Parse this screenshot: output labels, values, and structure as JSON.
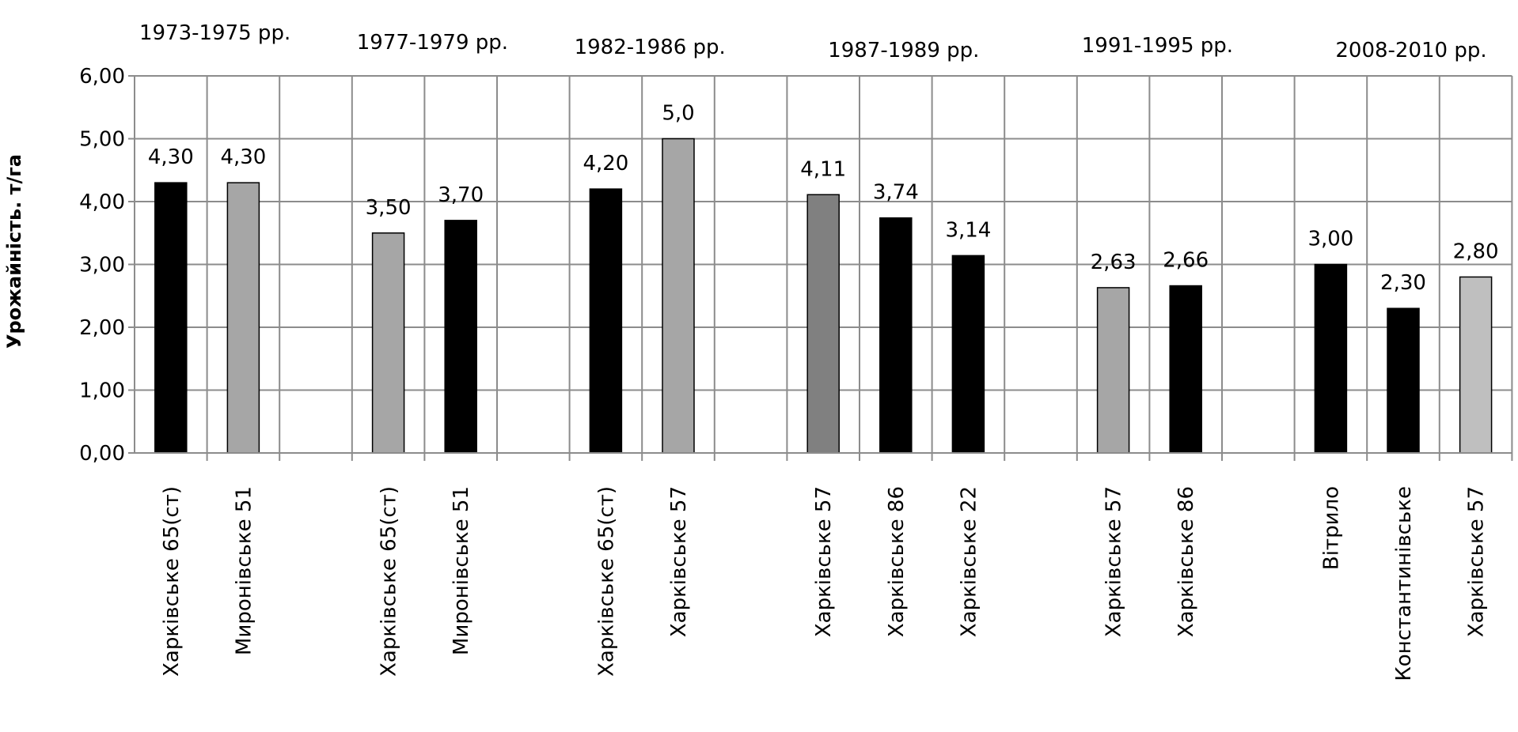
{
  "chart_data": {
    "type": "bar",
    "ylabel": "Урожайність. т/га",
    "xlabel": "",
    "ylim": [
      0,
      6
    ],
    "y_ticks": [
      "0,00",
      "1,00",
      "2,00",
      "3,00",
      "4,00",
      "5,00",
      "6,00"
    ],
    "grid": true,
    "colors": {
      "black": "#000000",
      "gray": "#a6a6a6",
      "darkgray": "#808080",
      "lightgray": "#bfbfbf"
    },
    "groups": [
      {
        "period": "1973-1975 рр.",
        "bars": [
          {
            "label": "Харківське 65(ст)",
            "value": 4.3,
            "value_label": "4,30",
            "color": "black"
          },
          {
            "label": "Миронівське 51",
            "value": 4.3,
            "value_label": "4,30",
            "color": "gray"
          }
        ]
      },
      {
        "period": "1977-1979 рр.",
        "bars": [
          {
            "label": "Харківське 65(ст)",
            "value": 3.5,
            "value_label": "3,50",
            "color": "gray"
          },
          {
            "label": "Миронівське 51",
            "value": 3.7,
            "value_label": "3,70",
            "color": "black"
          }
        ]
      },
      {
        "period": "1982-1986 рр.",
        "bars": [
          {
            "label": "Харківське 65(ст)",
            "value": 4.2,
            "value_label": "4,20",
            "color": "black"
          },
          {
            "label": "Харківське 57",
            "value": 5.0,
            "value_label": "5,0",
            "color": "gray"
          }
        ]
      },
      {
        "period": "1987-1989 рр.",
        "bars": [
          {
            "label": "Харківське 57",
            "value": 4.11,
            "value_label": "4,11",
            "color": "darkgray"
          },
          {
            "label": "Харківське 86",
            "value": 3.74,
            "value_label": "3,74",
            "color": "black"
          },
          {
            "label": "Харківське 22",
            "value": 3.14,
            "value_label": "3,14",
            "color": "black"
          }
        ]
      },
      {
        "period": "1991-1995 рр.",
        "bars": [
          {
            "label": "Харківське 57",
            "value": 2.63,
            "value_label": "2,63",
            "color": "gray"
          },
          {
            "label": "Харківське 86",
            "value": 2.66,
            "value_label": "2,66",
            "color": "black"
          }
        ]
      },
      {
        "period": "2008-2010 рр.",
        "bars": [
          {
            "label": "Вітрило",
            "value": 3.0,
            "value_label": "3,00",
            "color": "black"
          },
          {
            "label": "Константинівське",
            "value": 2.3,
            "value_label": "2,30",
            "color": "black"
          },
          {
            "label": "Харківське 57",
            "value": 2.8,
            "value_label": "2,80",
            "color": "lightgray"
          }
        ]
      }
    ]
  }
}
